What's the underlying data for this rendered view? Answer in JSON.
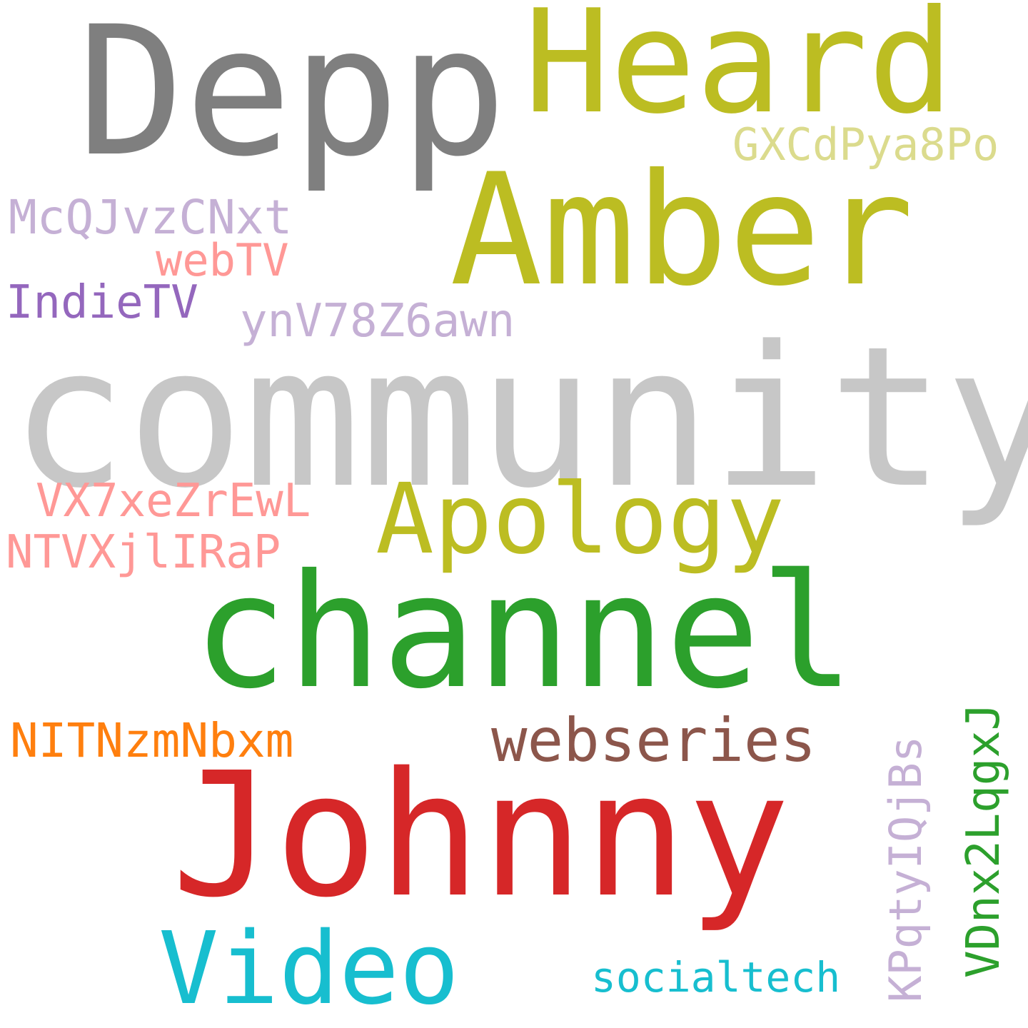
{
  "words": {
    "community": {
      "text": "community",
      "color": "#c7c7c7"
    },
    "depp": {
      "text": "Depp",
      "color": "#7f7f7f"
    },
    "heard": {
      "text": "Heard",
      "color": "#bcbd22"
    },
    "amber": {
      "text": "Amber",
      "color": "#bcbd22"
    },
    "channel": {
      "text": "channel",
      "color": "#2ca02c"
    },
    "johnny": {
      "text": "Johnny",
      "color": "#d62728"
    },
    "apology": {
      "text": "Apology",
      "color": "#bcbd22"
    },
    "video": {
      "text": "Video",
      "color": "#17becf"
    },
    "webseries": {
      "text": "webseries",
      "color": "#8c564b"
    },
    "gx": {
      "text": "GXCdPya8Po",
      "color": "#dbdb8d"
    },
    "mc": {
      "text": "McQJvzCNxt",
      "color": "#c5b0d5"
    },
    "webtv": {
      "text": "webTV",
      "color": "#ff9896"
    },
    "indietv": {
      "text": "IndieTV",
      "color": "#9467bd"
    },
    "yn": {
      "text": "ynV78Z6awn",
      "color": "#c5b0d5"
    },
    "vx": {
      "text": "VX7xeZrEwL",
      "color": "#ff9896"
    },
    "nt": {
      "text": "NTVXjlIRaP",
      "color": "#ff9896"
    },
    "nit": {
      "text": "NITNzmNbxm",
      "color": "#ff7f0e"
    },
    "social": {
      "text": "socialtech",
      "color": "#17becf"
    },
    "kp": {
      "text": "KPqtyIQjBs",
      "color": "#c5b0d5"
    },
    "vd": {
      "text": "VDnx2LqgxJ",
      "color": "#2ca02c"
    }
  }
}
